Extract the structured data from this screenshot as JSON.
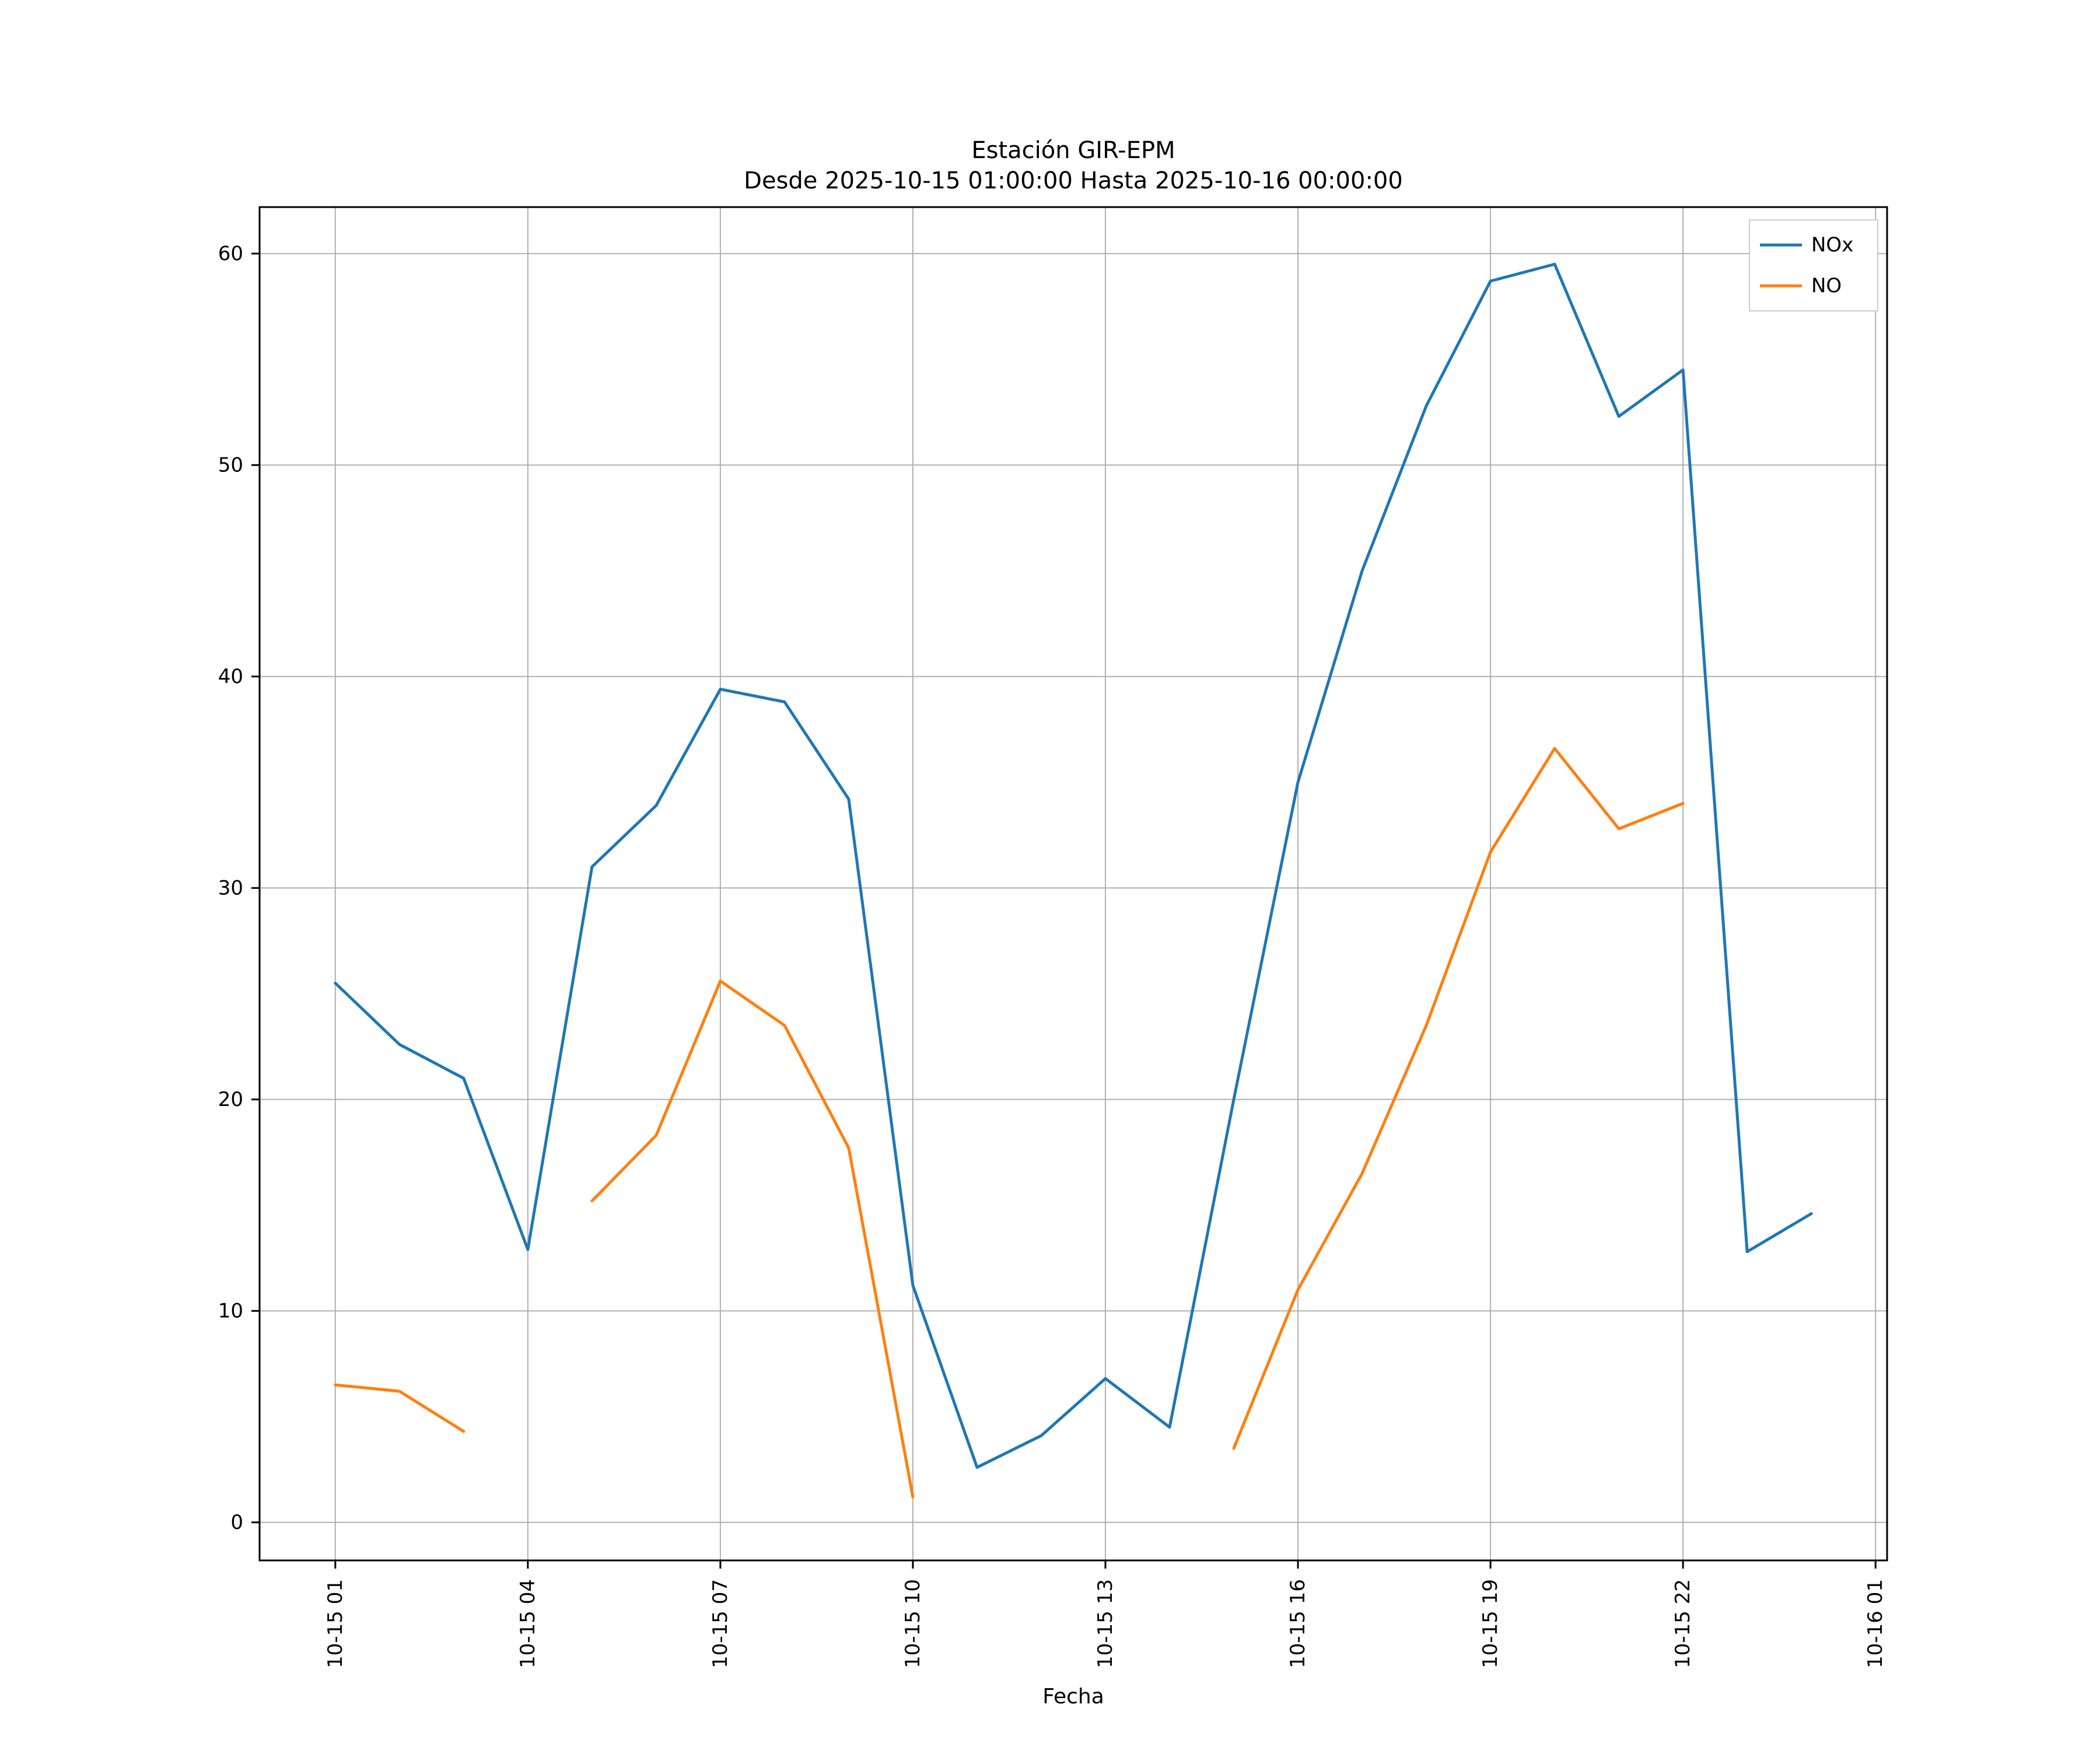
{
  "figure": {
    "title_line1": "Estación GIR-EPM",
    "title_line2": "Desde 2025-10-15 01:00:00 Hasta 2025-10-16 00:00:00",
    "xlabel": "Fecha"
  },
  "chart_data": {
    "type": "line",
    "title": "Estación GIR-EPM\nDesde 2025-10-15 01:00:00 Hasta 2025-10-16 00:00:00",
    "xlabel": "Fecha",
    "ylabel": "",
    "grid": true,
    "legend_position": "upper right",
    "xlim": [
      -0.18,
      25.18
    ],
    "ylim": [
      -1.8,
      62.2
    ],
    "x": [
      1,
      2,
      3,
      4,
      5,
      6,
      7,
      8,
      9,
      10,
      11,
      12,
      13,
      14,
      15,
      16,
      17,
      18,
      19,
      20,
      21,
      22,
      23,
      24
    ],
    "series": [
      {
        "name": "NOx",
        "color": "#1f77b4",
        "values": [
          25.5,
          22.6,
          21.0,
          12.9,
          31.0,
          33.9,
          39.4,
          38.8,
          34.2,
          11.2,
          2.6,
          4.1,
          6.8,
          4.5,
          20.0,
          35.0,
          45.0,
          52.8,
          58.7,
          59.5,
          52.3,
          54.5,
          12.8,
          14.6
        ]
      },
      {
        "name": "NO",
        "color": "#ff7f0e",
        "values": [
          6.5,
          6.2,
          4.3,
          null,
          15.2,
          18.3,
          25.6,
          23.5,
          17.7,
          1.2,
          null,
          null,
          null,
          null,
          3.5,
          11.0,
          16.5,
          23.5,
          31.7,
          36.6,
          32.8,
          34.0,
          null,
          null
        ]
      }
    ],
    "xticks": [
      {
        "value": 1,
        "label": "10-15 01"
      },
      {
        "value": 4,
        "label": "10-15 04"
      },
      {
        "value": 7,
        "label": "10-15 07"
      },
      {
        "value": 10,
        "label": "10-15 10"
      },
      {
        "value": 13,
        "label": "10-15 13"
      },
      {
        "value": 16,
        "label": "10-15 16"
      },
      {
        "value": 19,
        "label": "10-15 19"
      },
      {
        "value": 22,
        "label": "10-15 22"
      },
      {
        "value": 25,
        "label": "10-16 01"
      }
    ],
    "yticks": [
      0,
      10,
      20,
      30,
      40,
      50,
      60
    ],
    "colors": {
      "grid": "#b0b0b0",
      "axis": "#000000",
      "legend_edge": "#cccccc",
      "background": "#ffffff"
    }
  }
}
